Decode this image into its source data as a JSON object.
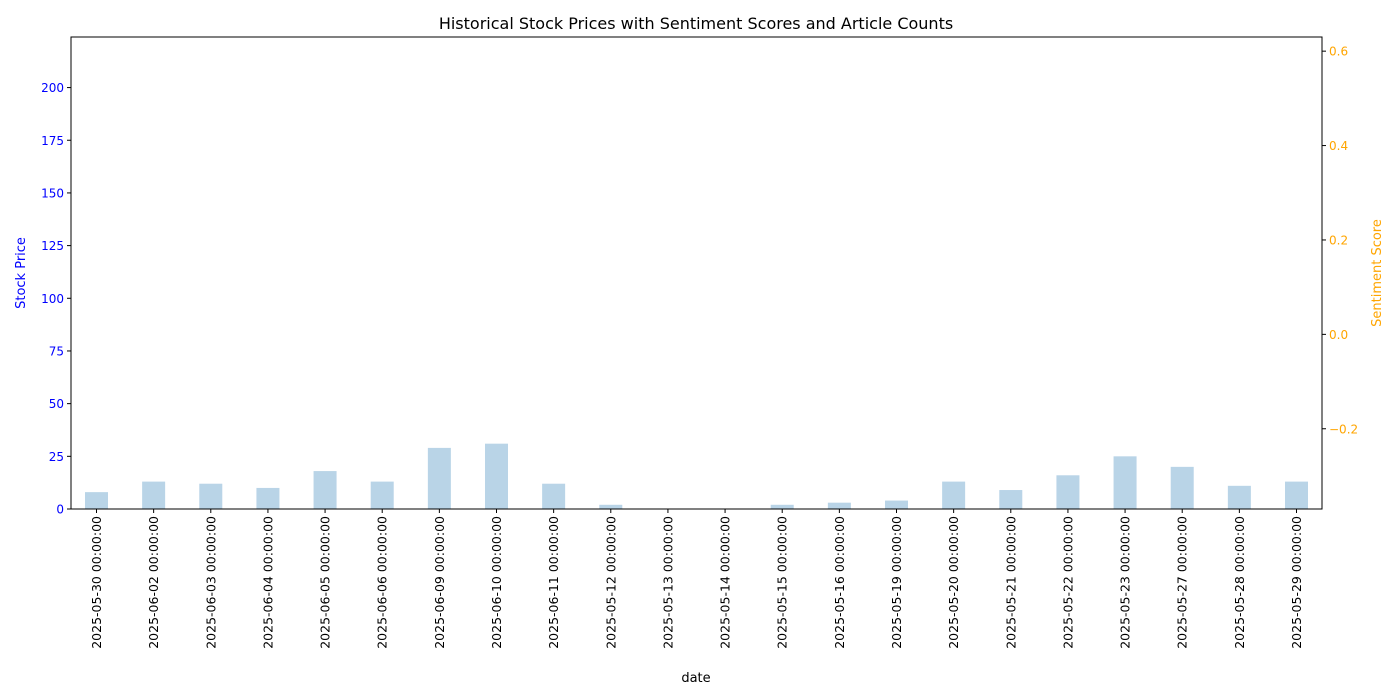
{
  "chart_data": {
    "type": "bar",
    "title": "Historical Stock Prices with Sentiment Scores and Article Counts",
    "xlabel": "date",
    "ylabel": "Stock Price",
    "y2label": "Sentiment Score",
    "categories": [
      "2025-05-30 00:00:00",
      "2025-06-02 00:00:00",
      "2025-06-03 00:00:00",
      "2025-06-04 00:00:00",
      "2025-06-05 00:00:00",
      "2025-06-06 00:00:00",
      "2025-06-09 00:00:00",
      "2025-06-10 00:00:00",
      "2025-06-11 00:00:00",
      "2025-05-12 00:00:00",
      "2025-05-13 00:00:00",
      "2025-05-14 00:00:00",
      "2025-05-15 00:00:00",
      "2025-05-16 00:00:00",
      "2025-05-19 00:00:00",
      "2025-05-20 00:00:00",
      "2025-05-21 00:00:00",
      "2025-05-22 00:00:00",
      "2025-05-23 00:00:00",
      "2025-05-27 00:00:00",
      "2025-05-28 00:00:00",
      "2025-05-29 00:00:00"
    ],
    "values": [
      8,
      13,
      12,
      10,
      18,
      13,
      29,
      31,
      12,
      2,
      0,
      0,
      2,
      3,
      4,
      13,
      9,
      16,
      25,
      20,
      11,
      13
    ],
    "ylim": [
      0,
      224
    ],
    "yticks": [
      0,
      25,
      50,
      75,
      100,
      125,
      150,
      175,
      200
    ],
    "y2lim": [
      -0.37,
      0.63
    ],
    "y2ticks": [
      -0.2,
      0.0,
      0.2,
      0.4,
      0.6
    ],
    "y2ticklabels": [
      "−0.2",
      "0.0",
      "0.2",
      "0.4",
      "0.6"
    ],
    "grid": false,
    "colors": {
      "bar": "#b9d4e7",
      "left_axis": "#0000ff",
      "right_axis": "#ffa500",
      "text": "#000000"
    }
  }
}
